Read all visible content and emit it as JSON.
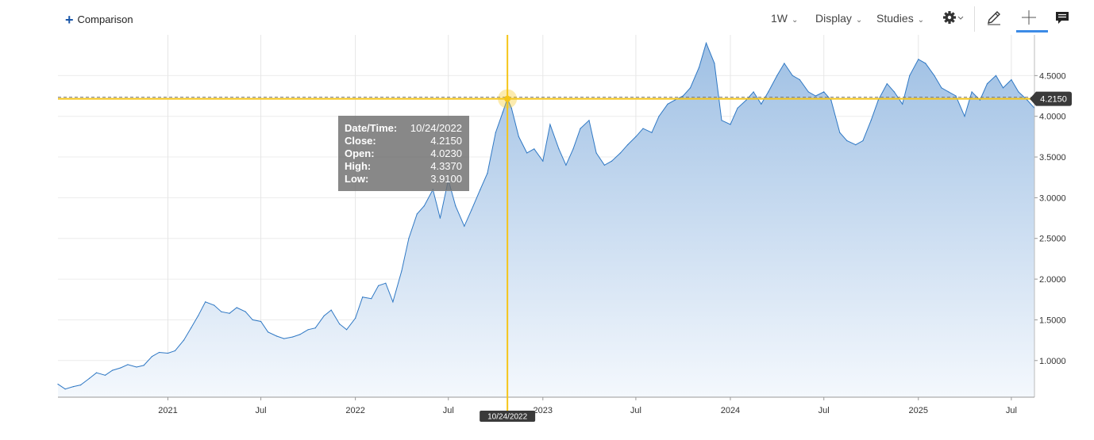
{
  "toolbar": {
    "comparison_label": "Comparison",
    "interval_label": "1W",
    "display_label": "Display",
    "studies_label": "Studies",
    "icons": [
      "plus-icon",
      "chevron-down-icon",
      "gear-icon",
      "pencil-icon",
      "crosshair-icon",
      "comment-icon"
    ],
    "active_tool": "crosshair",
    "accent_color": "#3c8be6"
  },
  "crosshair": {
    "date_badge": "10/24/2022",
    "price_badge": "4.2150",
    "color": "#f5c518"
  },
  "tooltip": {
    "datetime_key": "Date/Time:",
    "datetime_val": "10/24/2022",
    "close_key": "Close:",
    "close_val": "4.2150",
    "open_key": "Open:",
    "open_val": "4.0230",
    "high_key": "High:",
    "high_val": "4.3370",
    "low_key": "Low:",
    "low_val": "3.9100"
  },
  "chart_data": {
    "type": "area",
    "title": "",
    "xlabel": "",
    "ylabel": "",
    "x_ticks": [
      "2021",
      "Jul",
      "2022",
      "Jul",
      "2023",
      "Jul",
      "2024",
      "Jul",
      "2025",
      "Jul"
    ],
    "x_tick_dates": [
      "2021-01-01",
      "2021-07-01",
      "2022-01-01",
      "2022-07-01",
      "2023-01-01",
      "2023-07-01",
      "2024-01-01",
      "2024-07-01",
      "2025-01-01",
      "2025-07-01"
    ],
    "y_ticks": [
      "1.0000",
      "1.5000",
      "2.0000",
      "2.5000",
      "3.0000",
      "3.5000",
      "4.0000",
      "4.5000"
    ],
    "ylim": [
      0.55,
      5.0
    ],
    "xlim": [
      "2020-06-01",
      "2025-08-15"
    ],
    "grid": true,
    "line_color": "#2f78c4",
    "fill_color": "#a9c6e6",
    "series": [
      {
        "x": [
          "2020-06-01",
          "2020-06-15",
          "2020-07-01",
          "2020-07-15",
          "2020-08-01",
          "2020-08-15",
          "2020-09-01",
          "2020-09-15",
          "2020-10-01",
          "2020-10-15",
          "2020-11-01",
          "2020-11-15",
          "2020-12-01",
          "2020-12-15",
          "2021-01-01",
          "2021-01-15",
          "2021-02-01",
          "2021-02-15",
          "2021-03-01",
          "2021-03-15",
          "2021-04-01",
          "2021-04-15",
          "2021-05-01",
          "2021-05-15",
          "2021-06-01",
          "2021-06-15",
          "2021-07-01",
          "2021-07-15",
          "2021-08-01",
          "2021-08-15",
          "2021-09-01",
          "2021-09-15",
          "2021-10-01",
          "2021-10-15",
          "2021-11-01",
          "2021-11-15",
          "2021-12-01",
          "2021-12-15",
          "2022-01-01",
          "2022-01-15",
          "2022-02-01",
          "2022-02-15",
          "2022-03-01",
          "2022-03-15",
          "2022-04-01",
          "2022-04-15",
          "2022-05-01",
          "2022-05-15",
          "2022-06-01",
          "2022-06-15",
          "2022-07-01",
          "2022-07-15",
          "2022-08-01",
          "2022-08-15",
          "2022-09-01",
          "2022-09-15",
          "2022-10-01",
          "2022-10-15",
          "2022-10-24",
          "2022-11-01",
          "2022-11-15",
          "2022-12-01",
          "2022-12-15",
          "2023-01-01",
          "2023-01-15",
          "2023-02-01",
          "2023-02-15",
          "2023-03-01",
          "2023-03-15",
          "2023-04-01",
          "2023-04-15",
          "2023-05-01",
          "2023-05-15",
          "2023-06-01",
          "2023-06-15",
          "2023-07-01",
          "2023-07-15",
          "2023-08-01",
          "2023-08-15",
          "2023-09-01",
          "2023-09-15",
          "2023-10-01",
          "2023-10-15",
          "2023-11-01",
          "2023-11-15",
          "2023-12-01",
          "2023-12-15",
          "2024-01-01",
          "2024-01-15",
          "2024-02-01",
          "2024-02-15",
          "2024-03-01",
          "2024-03-15",
          "2024-04-01",
          "2024-04-15",
          "2024-05-01",
          "2024-05-15",
          "2024-06-01",
          "2024-06-15",
          "2024-07-01",
          "2024-07-15",
          "2024-08-01",
          "2024-08-15",
          "2024-09-01",
          "2024-09-15",
          "2024-10-01",
          "2024-10-15",
          "2024-11-01",
          "2024-11-15",
          "2024-12-01",
          "2024-12-15",
          "2025-01-01",
          "2025-01-15",
          "2025-02-01",
          "2025-02-15",
          "2025-03-01",
          "2025-03-15",
          "2025-04-01",
          "2025-04-15",
          "2025-05-01",
          "2025-05-15",
          "2025-06-01",
          "2025-06-15",
          "2025-07-01",
          "2025-07-15",
          "2025-08-01",
          "2025-08-15"
        ],
        "y": [
          0.71,
          0.65,
          0.68,
          0.7,
          0.78,
          0.85,
          0.82,
          0.88,
          0.91,
          0.95,
          0.92,
          0.94,
          1.05,
          1.1,
          1.09,
          1.12,
          1.25,
          1.4,
          1.55,
          1.72,
          1.68,
          1.6,
          1.58,
          1.65,
          1.6,
          1.5,
          1.48,
          1.35,
          1.3,
          1.27,
          1.29,
          1.32,
          1.38,
          1.4,
          1.55,
          1.62,
          1.45,
          1.38,
          1.52,
          1.78,
          1.76,
          1.92,
          1.95,
          1.72,
          2.1,
          2.5,
          2.8,
          2.9,
          3.1,
          2.75,
          3.22,
          2.9,
          2.65,
          2.85,
          3.1,
          3.3,
          3.8,
          4.05,
          4.215,
          4.1,
          3.75,
          3.55,
          3.6,
          3.45,
          3.9,
          3.6,
          3.4,
          3.6,
          3.85,
          3.95,
          3.55,
          3.4,
          3.45,
          3.55,
          3.65,
          3.75,
          3.85,
          3.8,
          4.0,
          4.15,
          4.2,
          4.25,
          4.35,
          4.6,
          4.9,
          4.65,
          3.95,
          3.9,
          4.1,
          4.2,
          4.3,
          4.15,
          4.3,
          4.5,
          4.65,
          4.5,
          4.45,
          4.3,
          4.25,
          4.3,
          4.2,
          3.8,
          3.7,
          3.65,
          3.7,
          3.95,
          4.2,
          4.4,
          4.3,
          4.15,
          4.5,
          4.7,
          4.65,
          4.5,
          4.35,
          4.3,
          4.25,
          4.0,
          4.3,
          4.2,
          4.4,
          4.5,
          4.35,
          4.45,
          4.3,
          4.2,
          4.1
        ]
      }
    ]
  }
}
